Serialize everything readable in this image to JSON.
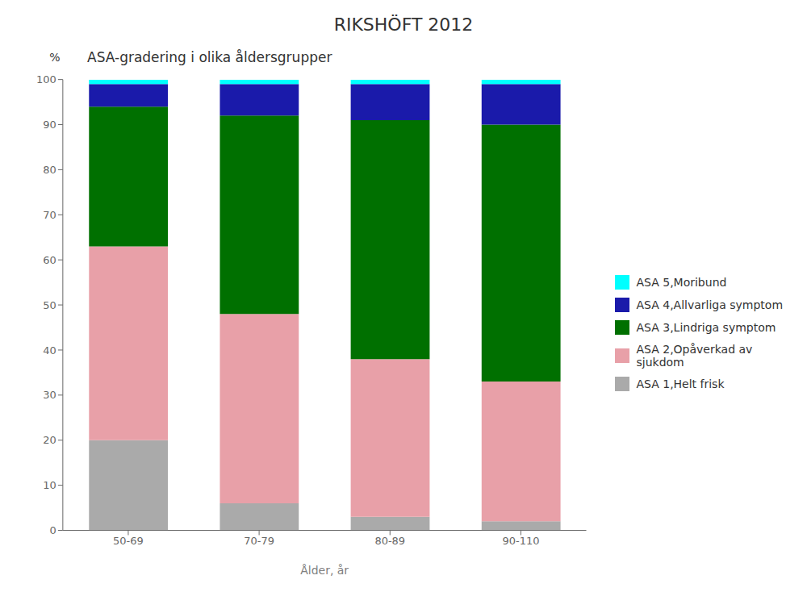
{
  "chart_data": {
    "type": "bar",
    "title": "RIKSHÖFT 2012",
    "subtitle": "ASA-gradering i olika åldersgrupper",
    "y_label": "%",
    "x_label": "Ålder, år",
    "categories": [
      "50-69",
      "70-79",
      "80-89",
      "90-110"
    ],
    "series": [
      {
        "name": "ASA 1,Helt frisk",
        "color": "#aaaaaa",
        "values": [
          20,
          6,
          3,
          2
        ]
      },
      {
        "name": "ASA 2,Opåverkad av sjukdom",
        "color": "#e8a0a8",
        "values": [
          43,
          42,
          35,
          31
        ]
      },
      {
        "name": "ASA 3,Lindriga symptom",
        "color": "#007000",
        "values": [
          31,
          44,
          53,
          57
        ]
      },
      {
        "name": "ASA 4,Allvarliga symptom",
        "color": "#1a1aaa",
        "values": [
          5,
          7,
          8,
          9
        ]
      },
      {
        "name": "ASA 5,Moribund",
        "color": "#00ffff",
        "values": [
          1,
          1,
          1,
          1
        ]
      }
    ],
    "stacked": true,
    "ylim": [
      0,
      100
    ],
    "yticks": [
      0,
      10,
      20,
      30,
      40,
      50,
      60,
      70,
      80,
      90,
      100
    ],
    "grid": false,
    "legend": "right"
  }
}
